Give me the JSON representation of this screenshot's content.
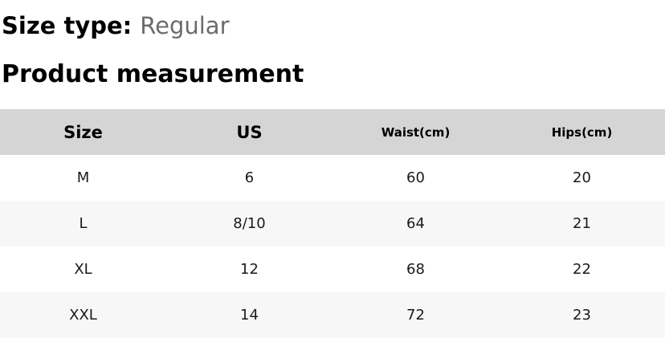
{
  "size_type": {
    "label": "Size type:",
    "value": "Regular"
  },
  "section_title": "Product measurement",
  "table": {
    "columns": [
      "Size",
      "US",
      "Waist(cm)",
      "Hips(cm)"
    ],
    "rows": [
      {
        "size": "M",
        "us": "6",
        "waist": "60",
        "hips": "20"
      },
      {
        "size": "L",
        "us": "8/10",
        "waist": "64",
        "hips": "21"
      },
      {
        "size": "XL",
        "us": "12",
        "waist": "68",
        "hips": "22"
      },
      {
        "size": "XXL",
        "us": "14",
        "waist": "72",
        "hips": "23"
      }
    ]
  },
  "colors": {
    "header_bg": "#d5d5d5",
    "alt_row_bg": "#f7f7f7",
    "row_bg": "#ffffff",
    "text": "#000000",
    "data_text": "#1a1a1a",
    "muted_text": "#6b6b6b"
  }
}
